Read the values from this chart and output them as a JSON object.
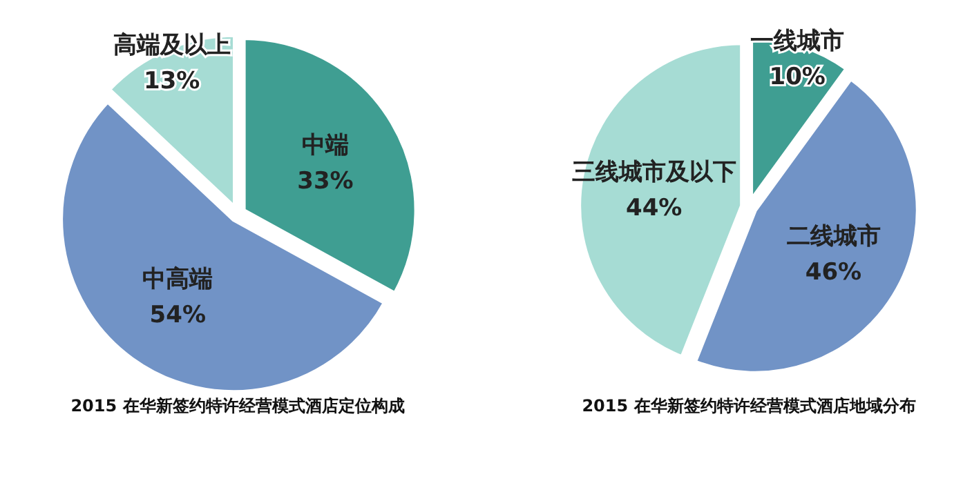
{
  "chart_data": [
    {
      "type": "pie",
      "title": "2015 在华新签约特许经营模式酒店定位构成",
      "categories": [
        "中端",
        "中高端",
        "高端及以上"
      ],
      "values": [
        33,
        54,
        13
      ],
      "value_labels": [
        "33%",
        "54%",
        "13%"
      ],
      "colors": [
        "#3f9e92",
        "#7193c6",
        "#a6dcd4"
      ]
    },
    {
      "type": "pie",
      "title": "2015 在华新签约特许经营模式酒店地域分布",
      "categories": [
        "一线城市",
        "二线城市",
        "三线城市及以下"
      ],
      "values": [
        10,
        46,
        44
      ],
      "value_labels": [
        "10%",
        "46%",
        "44%"
      ],
      "colors": [
        "#3f9e92",
        "#7193c6",
        "#a6dcd4"
      ]
    }
  ]
}
